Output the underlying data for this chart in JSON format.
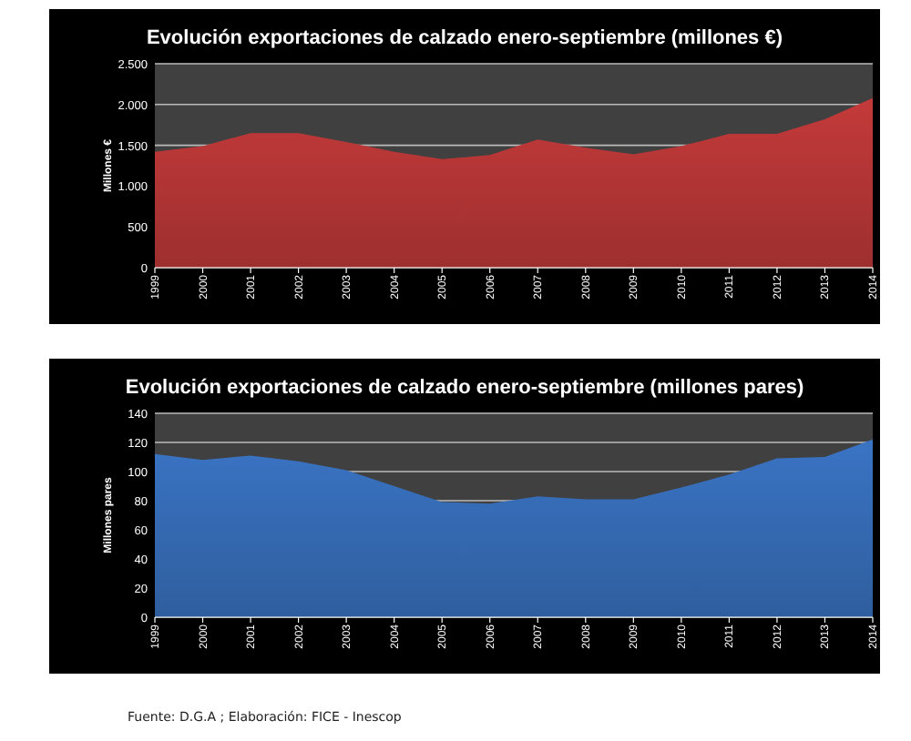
{
  "chart_data": [
    {
      "type": "area",
      "title": "Evolución exportaciones de calzado enero-septiembre (millones €)",
      "ylabel": "Millones €",
      "categories": [
        "1999",
        "2000",
        "2001",
        "2002",
        "2003",
        "2004",
        "2005",
        "2006",
        "2007",
        "2008",
        "2009",
        "2010",
        "2011",
        "2012",
        "2013",
        "2014"
      ],
      "series": [
        {
          "color": "#c43a3a",
          "values": [
            1420,
            1490,
            1650,
            1650,
            1540,
            1420,
            1330,
            1380,
            1570,
            1470,
            1390,
            1490,
            1640,
            1640,
            1820,
            2080
          ]
        }
      ],
      "ylim": [
        0,
        2500
      ],
      "yticks": [
        {
          "value": 0,
          "label": "0"
        },
        {
          "value": 500,
          "label": "500"
        },
        {
          "value": 1000,
          "label": "1.000"
        },
        {
          "value": 1500,
          "label": "1.500"
        },
        {
          "value": 2000,
          "label": "2.000"
        },
        {
          "value": 2500,
          "label": "2.500"
        }
      ],
      "grid": "y"
    },
    {
      "type": "area",
      "title": "Evolución exportaciones de calzado enero-septiembre (millones pares)",
      "ylabel": "Millones pares",
      "categories": [
        "1999",
        "2000",
        "2001",
        "2002",
        "2003",
        "2004",
        "2005",
        "2006",
        "2007",
        "2008",
        "2009",
        "2010",
        "2011",
        "2012",
        "2013",
        "2014"
      ],
      "series": [
        {
          "color": "#3a74c4",
          "values": [
            112,
            108,
            111,
            107,
            101,
            90,
            79,
            78,
            83,
            81,
            81,
            89,
            98,
            109,
            110,
            122
          ]
        }
      ],
      "ylim": [
        0,
        140
      ],
      "yticks": [
        0,
        20,
        40,
        60,
        80,
        100,
        120,
        140
      ],
      "grid": "y",
      "annotations": [
        "Fuente: D.G.A ; Elaboración: FICE - Inescop"
      ]
    }
  ]
}
